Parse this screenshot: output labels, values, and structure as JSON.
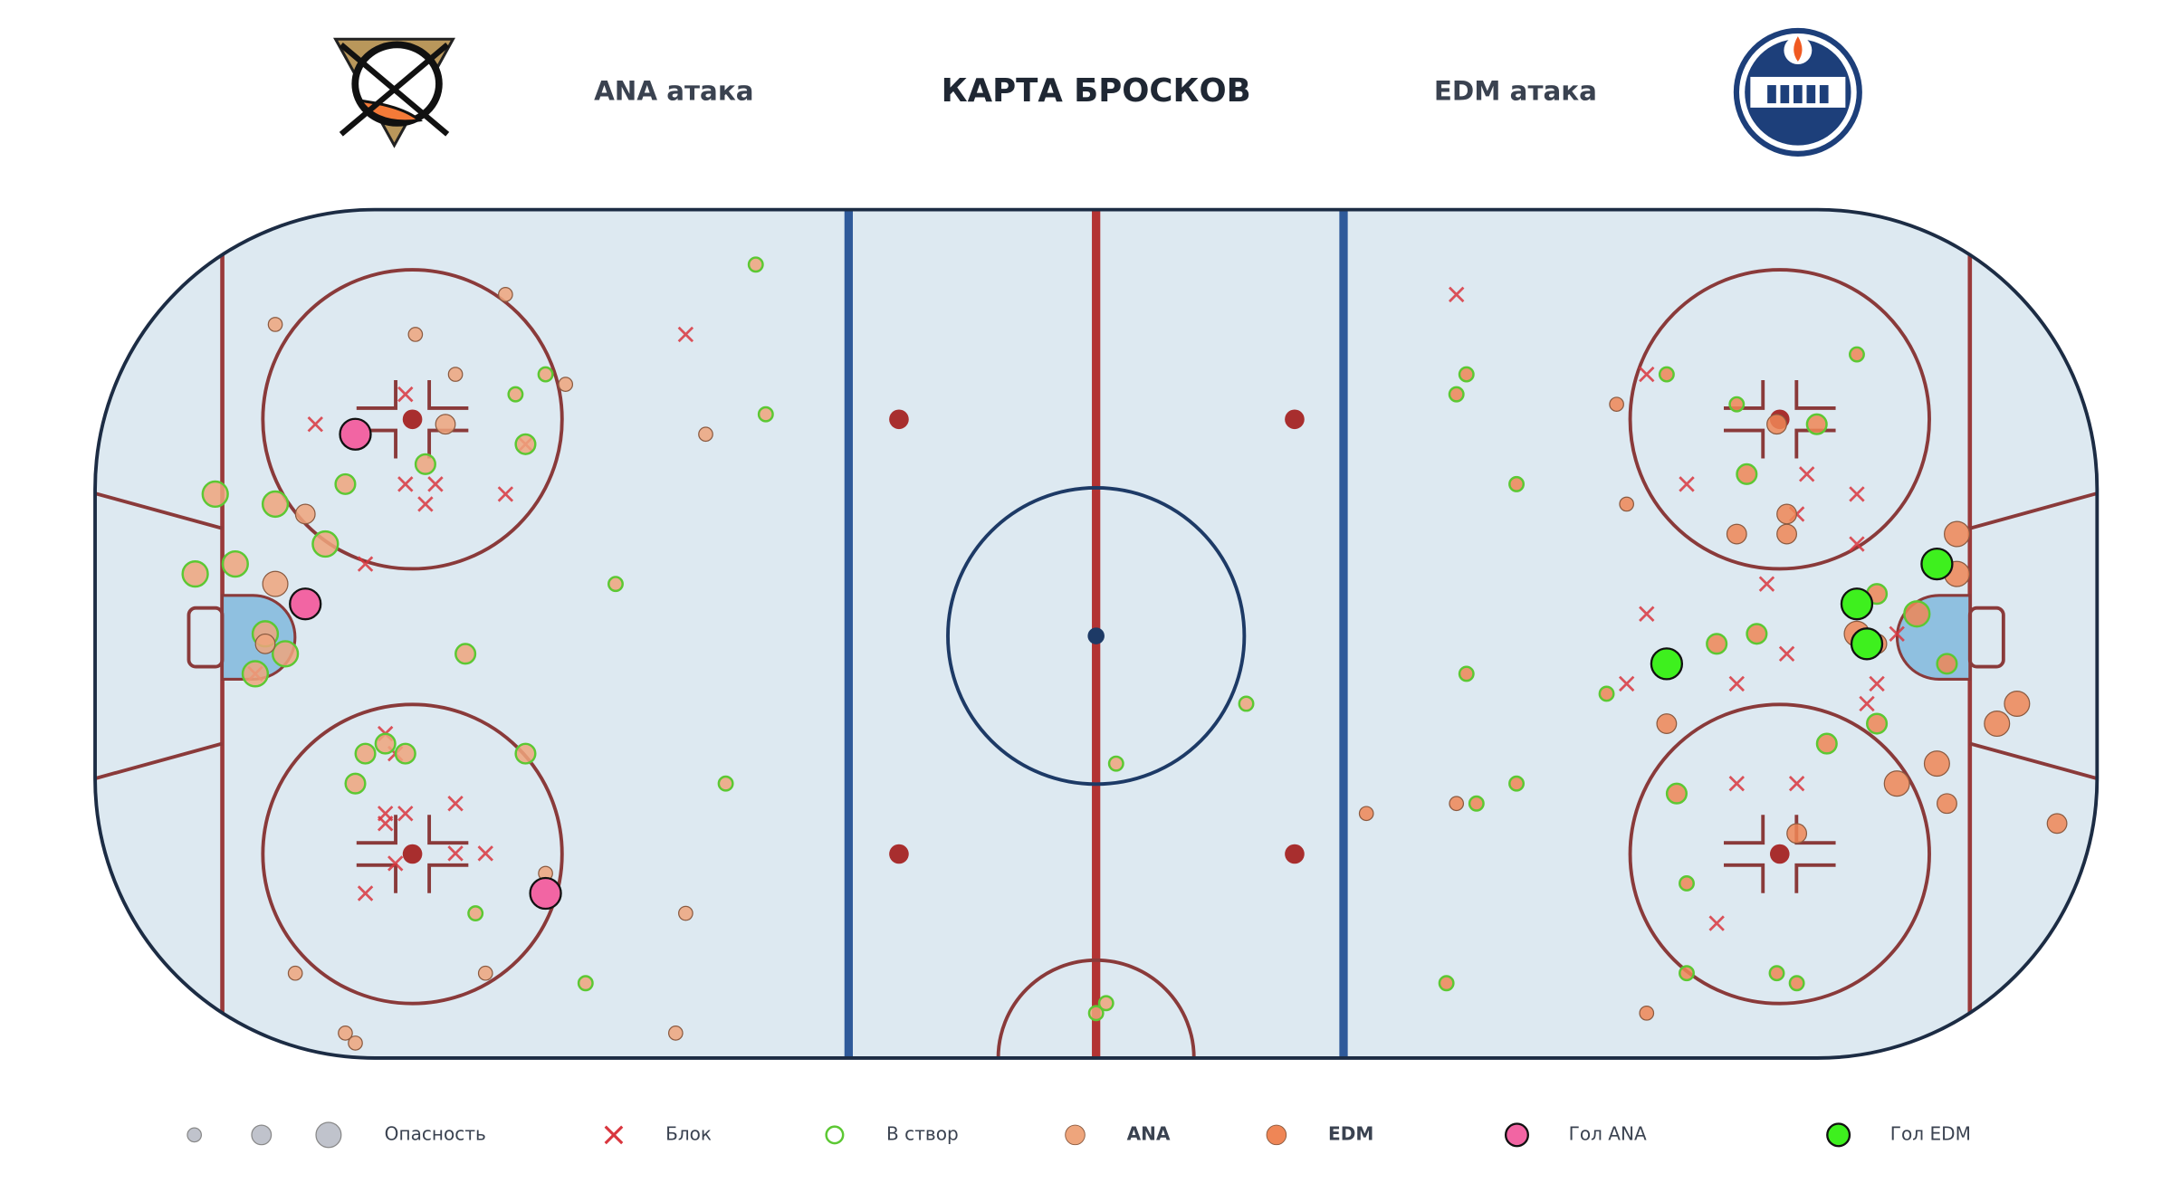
{
  "chart_data": {
    "type": "scatter",
    "title": "КАРТА БРОСКОВ",
    "annotations": [
      "ANA атака",
      "EDM атака"
    ],
    "xlim": [
      -100,
      100
    ],
    "ylim": [
      -42.5,
      42.5
    ],
    "size_legend": {
      "label": "Опасность",
      "sizes": [
        1,
        2,
        3
      ],
      "color": "#c0c3cc"
    },
    "on_target": {
      "label": "В створ",
      "color": "#5cc833"
    },
    "series": [
      {
        "name": "Блок",
        "marker": "x",
        "color": "#d9363e",
        "x": [
          -41,
          -69,
          -78,
          -69,
          -66,
          -67,
          -59,
          -57,
          -73,
          -84,
          -71,
          -70,
          -71,
          -69,
          -71,
          -64,
          -64,
          -61,
          -70,
          -73,
          36,
          55,
          59,
          71,
          76,
          70,
          76,
          67,
          55,
          80,
          69,
          53,
          64,
          78,
          77,
          64,
          70,
          62
        ],
        "y": [
          30,
          24,
          21,
          15,
          15,
          13,
          14,
          19,
          7,
          -4,
          -10,
          -12,
          -18,
          -18,
          -19,
          -17,
          -22,
          -22,
          -23,
          -26,
          34,
          26,
          15,
          16,
          14,
          12,
          9,
          5,
          2,
          0,
          -2,
          -5,
          -5,
          -5,
          -7,
          -15,
          -15,
          -29
        ]
      },
      {
        "name": "ANA",
        "marker": "circle",
        "color": "#eea57c",
        "bold": true,
        "x": [
          -34,
          -59,
          -82,
          -68,
          -64,
          -55,
          -53,
          -58,
          -33,
          -65,
          -39,
          -57,
          -67,
          -75,
          -88,
          -82,
          -79,
          -77,
          -90,
          -86,
          -82,
          -48,
          -83,
          -81,
          -83,
          -63,
          -84,
          -71,
          -69,
          -73,
          -57,
          -74,
          -37,
          -55,
          -62,
          -41,
          -80,
          -61,
          -51,
          -75,
          -74,
          -42,
          2,
          15,
          1,
          0
        ],
        "y": [
          37,
          34,
          31,
          30,
          26,
          26,
          25,
          24,
          22,
          21,
          20,
          19,
          17,
          15,
          14,
          13,
          12,
          9,
          6,
          7,
          5,
          5,
          0,
          -2,
          -1,
          -2,
          -4,
          -11,
          -12,
          -12,
          -12,
          -15,
          -15,
          -24,
          -28,
          -28,
          -34,
          -34,
          -35,
          -40,
          -41,
          -40,
          -13,
          -7,
          -37,
          -38
        ],
        "sizes": [
          1,
          1,
          1,
          1,
          1,
          1,
          1,
          1,
          1,
          2,
          1,
          2,
          2,
          2,
          3,
          3,
          2,
          3,
          3,
          3,
          3,
          1,
          3,
          3,
          2,
          2,
          3,
          2,
          2,
          2,
          2,
          2,
          1,
          1,
          1,
          1,
          1,
          1,
          1,
          1,
          1,
          1,
          1,
          1,
          1,
          1
        ],
        "on_target": [
          true,
          false,
          false,
          false,
          false,
          true,
          false,
          true,
          true,
          false,
          false,
          true,
          true,
          true,
          true,
          true,
          false,
          true,
          true,
          true,
          false,
          true,
          true,
          true,
          false,
          true,
          true,
          true,
          true,
          true,
          true,
          true,
          true,
          false,
          true,
          false,
          false,
          false,
          true,
          false,
          false,
          false,
          true,
          true,
          true,
          true
        ]
      },
      {
        "name": "EDM",
        "marker": "circle",
        "color": "#ef8656",
        "bold": true,
        "x": [
          37,
          36,
          57,
          76,
          52,
          64,
          72,
          68,
          42,
          65,
          53,
          69,
          64,
          69,
          86,
          86,
          78,
          82,
          66,
          62,
          76,
          78,
          85,
          37,
          51,
          57,
          78,
          92,
          90,
          73,
          84,
          80,
          58,
          42,
          36,
          38,
          27,
          85,
          70,
          96,
          59,
          35,
          59,
          68,
          70,
          55
        ],
        "y": [
          26,
          24,
          26,
          28,
          23,
          23,
          21,
          21,
          15,
          16,
          13,
          12,
          10,
          10,
          10,
          6,
          4,
          2,
          0,
          -1,
          0,
          -1,
          -3,
          -4,
          -6,
          -9,
          -9,
          -7,
          -9,
          -11,
          -13,
          -15,
          -16,
          -15,
          -17,
          -17,
          -18,
          -17,
          -20,
          -19,
          -25,
          -35,
          -34,
          -34,
          -35,
          -38
        ],
        "sizes": [
          1,
          1,
          1,
          1,
          1,
          1,
          2,
          2,
          1,
          2,
          1,
          2,
          2,
          2,
          3,
          3,
          2,
          3,
          2,
          2,
          3,
          2,
          2,
          1,
          1,
          2,
          2,
          3,
          3,
          2,
          3,
          3,
          2,
          1,
          1,
          1,
          1,
          2,
          2,
          2,
          1,
          1,
          1,
          1,
          1,
          1
        ],
        "on_target": [
          true,
          true,
          true,
          true,
          false,
          true,
          true,
          false,
          true,
          true,
          false,
          false,
          false,
          false,
          false,
          false,
          true,
          true,
          true,
          true,
          false,
          false,
          true,
          true,
          true,
          false,
          true,
          false,
          false,
          true,
          false,
          false,
          true,
          true,
          false,
          true,
          false,
          false,
          false,
          false,
          true,
          true,
          true,
          true,
          true,
          false
        ]
      },
      {
        "name": "Гол ANA",
        "marker": "goal",
        "color": "#f265a3",
        "x": [
          -74,
          -79,
          -55
        ],
        "y": [
          20,
          3,
          -26
        ],
        "sizes": [
          3,
          3,
          3
        ]
      },
      {
        "name": "Гол EDM",
        "marker": "goal",
        "color": "#3ef01e",
        "x": [
          84,
          76,
          77,
          57
        ],
        "y": [
          7,
          3,
          -1,
          -3
        ],
        "sizes": [
          3,
          3,
          3,
          3
        ]
      }
    ]
  }
}
